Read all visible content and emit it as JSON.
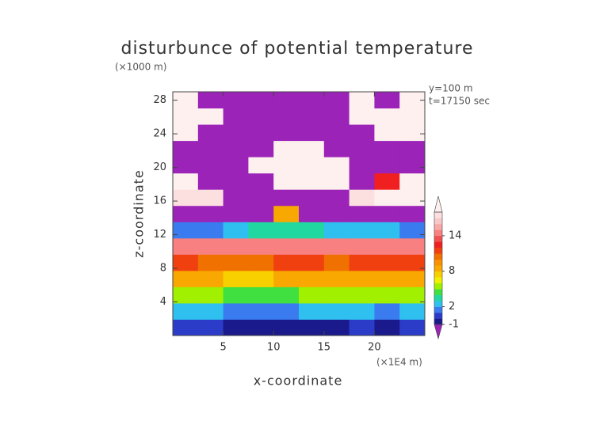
{
  "chart_data": {
    "type": "contour",
    "title": "disturbunce of potential temperature",
    "y_unit": "(×1000 m)",
    "x_unit": "(×1E4 m)",
    "xlabel": "x-coordinate",
    "ylabel": "z-coordinate",
    "annotations": [
      "y=100 m",
      "t=17150 sec"
    ],
    "xlim": [
      0,
      25
    ],
    "ylim": [
      0,
      29
    ],
    "xticks": [
      5,
      10,
      15,
      20
    ],
    "yticks": [
      4,
      8,
      12,
      16,
      20,
      24,
      28
    ],
    "z_values": [
      [
        0,
        0,
        -0.5,
        -0.5,
        -0.5,
        -0.5,
        -0.5,
        0,
        -0.5,
        0
      ],
      [
        2,
        2,
        1.5,
        1,
        1.5,
        2,
        2,
        2,
        1.5,
        2
      ],
      [
        5,
        5,
        4.5,
        4,
        4.5,
        5,
        5,
        5,
        5,
        5
      ],
      [
        8,
        8,
        7.5,
        7.5,
        8,
        8,
        8,
        8,
        8,
        8.5
      ],
      [
        11,
        10.5,
        10.5,
        10.5,
        11,
        11,
        10.5,
        11,
        11,
        11
      ],
      [
        14,
        14,
        14.5,
        14,
        14,
        14.5,
        14,
        14.5,
        14,
        14.5
      ],
      [
        1,
        1,
        2,
        3,
        3,
        3,
        2,
        2,
        2,
        1
      ],
      [
        -3,
        -3,
        -3,
        -3,
        8,
        -3,
        -3,
        -3,
        -3,
        -3
      ],
      [
        17,
        17,
        -3,
        -3,
        -3,
        -3,
        -3,
        17,
        18.5,
        18.5
      ],
      [
        18.5,
        -3,
        -3,
        -3,
        18.5,
        18.5,
        18.5,
        -3,
        12,
        18.5
      ],
      [
        -3,
        -3,
        -3,
        18.5,
        18.5,
        18.5,
        18.5,
        -3,
        -3,
        -3
      ],
      [
        -3,
        -3,
        -3,
        -3,
        18.5,
        18.5,
        -3,
        -3,
        -3,
        -3
      ],
      [
        18.5,
        -3,
        -3,
        -3,
        -3,
        -3,
        -3,
        -3,
        18.5,
        18.5
      ],
      [
        18.5,
        18.5,
        -3,
        -3,
        -3,
        -3,
        -3,
        18.5,
        18.5,
        18.5
      ],
      [
        18.5,
        -3,
        -3,
        -3,
        -3,
        -3,
        -3,
        18.5,
        -3,
        18.5
      ]
    ],
    "levels": [
      -1,
      0,
      1,
      2,
      3,
      4,
      5,
      6,
      7,
      8,
      9,
      10,
      11,
      12,
      13,
      14,
      15,
      16,
      17,
      18
    ],
    "colors": [
      "#1a1a8c",
      "#2a3cc8",
      "#3a7cf0",
      "#30c0f0",
      "#20d8a0",
      "#40e040",
      "#a0f000",
      "#f0f000",
      "#f8d000",
      "#f8a800",
      "#f89000",
      "#f07000",
      "#f04010",
      "#f02020",
      "#f05050",
      "#f88080",
      "#f8a8a8",
      "#f8c8c8",
      "#fce0e0"
    ],
    "under_color": "#9b23b8",
    "over_color": "#fff0f0",
    "cbar_ticks": [
      -1,
      2,
      8,
      14
    ]
  }
}
